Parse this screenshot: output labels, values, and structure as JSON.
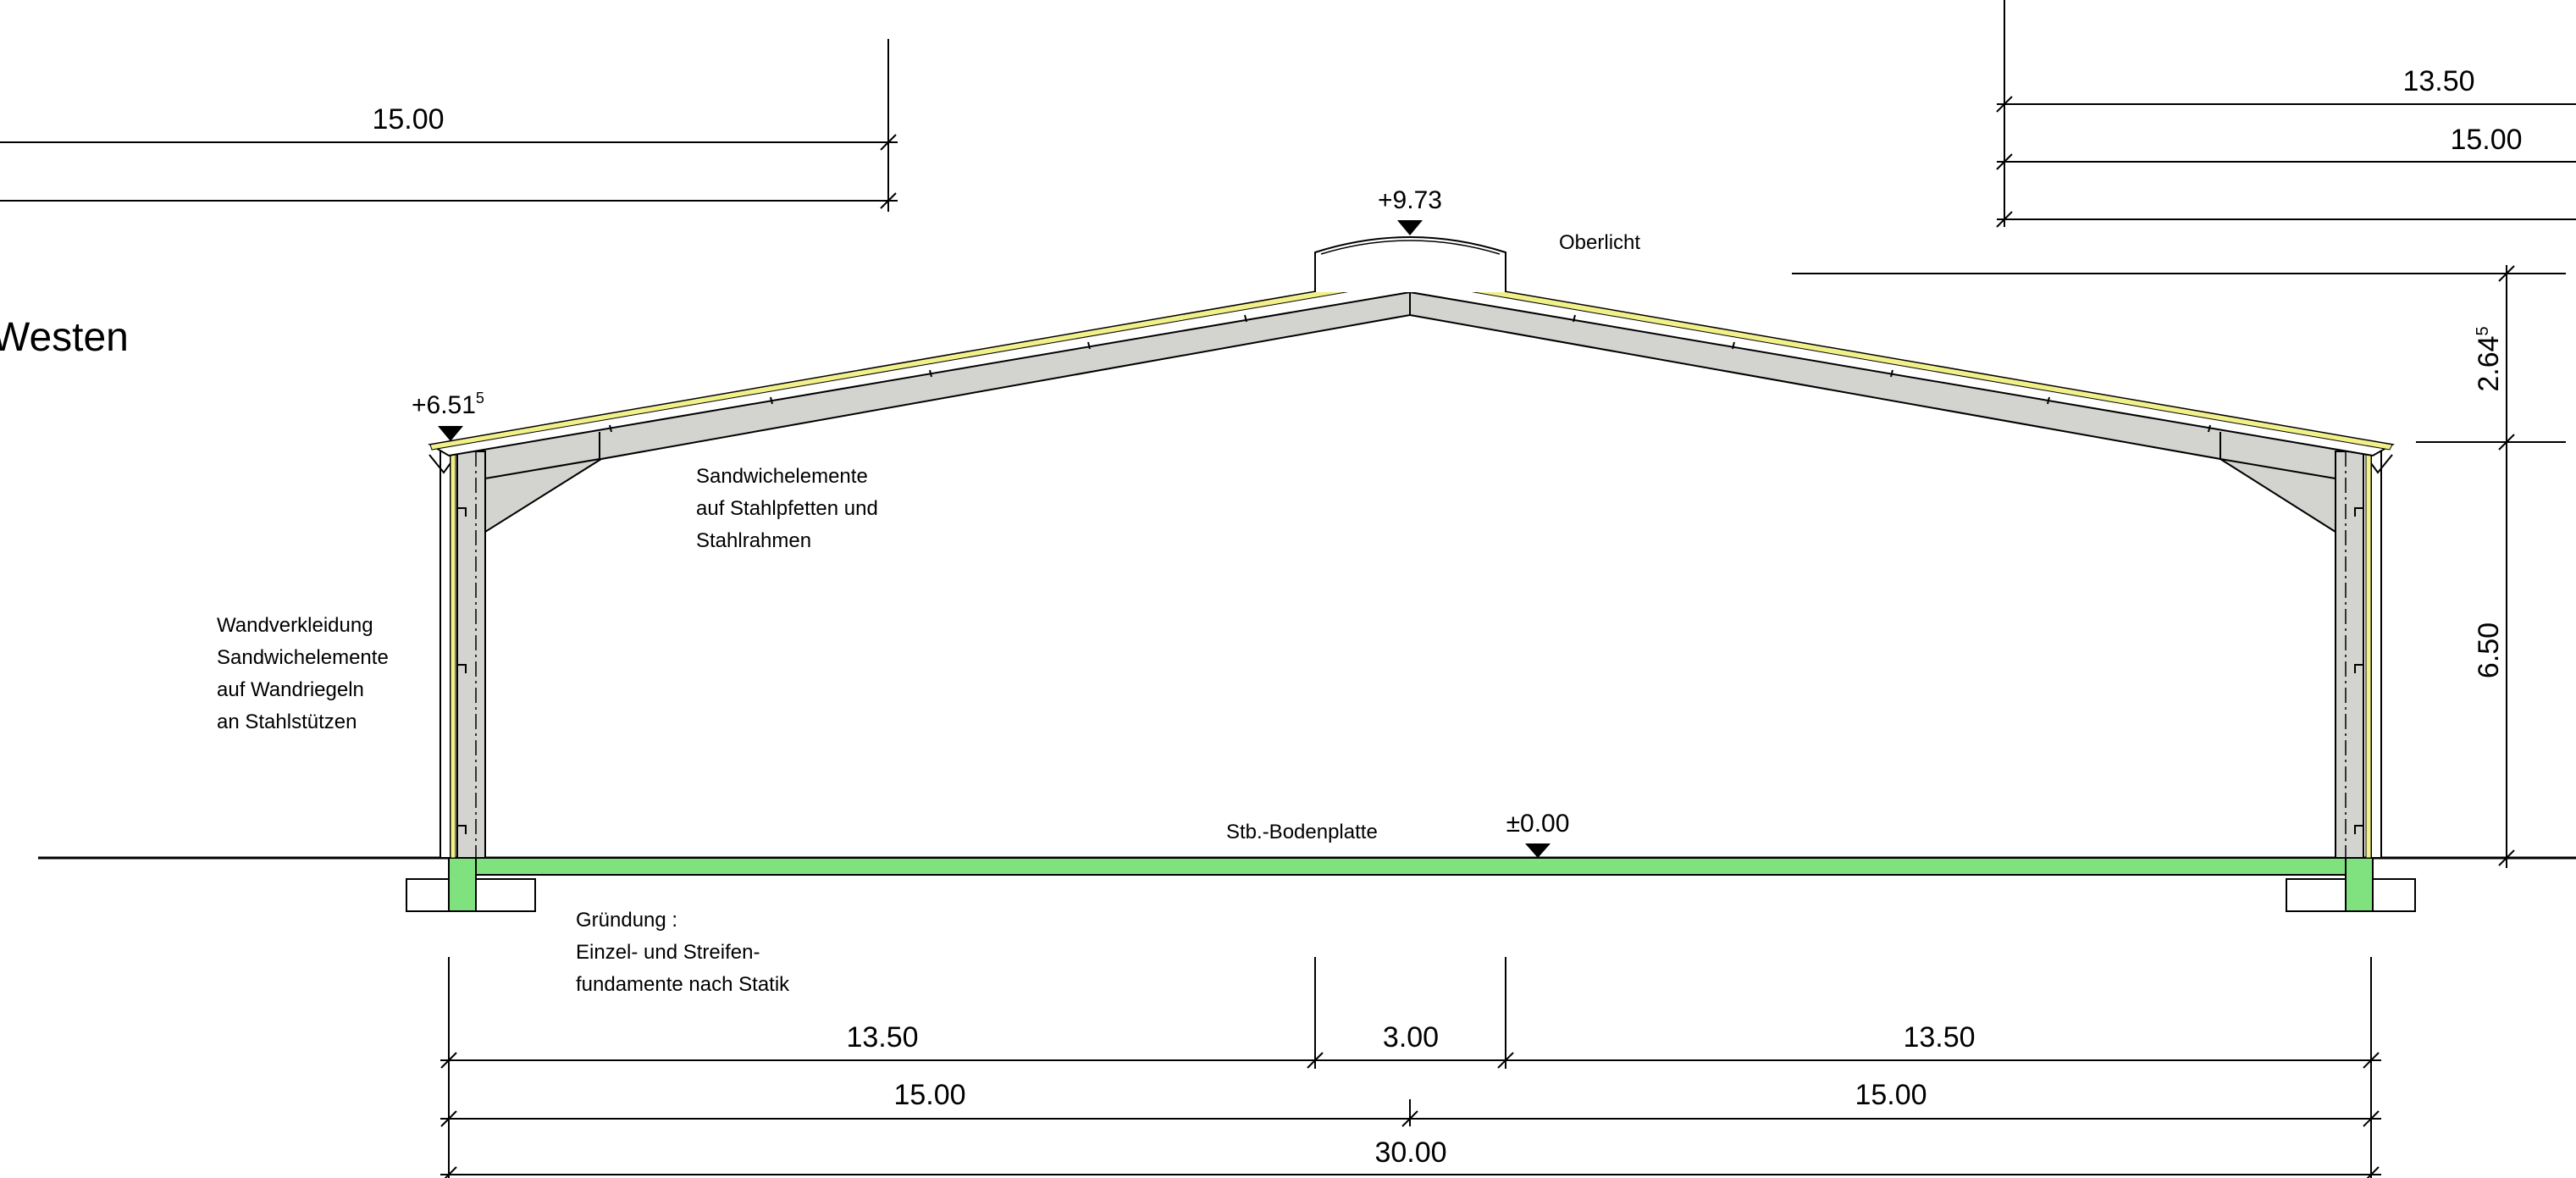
{
  "title": "Westen",
  "levels": {
    "ridge": "+9.73",
    "eave_main": "+6.51",
    "eave_sup": "5",
    "floor": "±0.00"
  },
  "labels": {
    "skylight": "Oberlicht",
    "roof": [
      "Sandwichelemente",
      "auf Stahlpfetten und",
      "Stahlrahmen"
    ],
    "wall": [
      "Wandverkleidung",
      "Sandwichelemente",
      "auf Wandriegeln",
      "an Stahlstützen"
    ],
    "slab": "Stb.-Bodenplatte",
    "foundation": [
      "Gründung :",
      "Einzel- und Streifen-",
      "fundamente nach Statik"
    ]
  },
  "dimensions": {
    "top_left": "15.00",
    "top_right_1": "13.50",
    "top_right_2": "15.00",
    "right_upper_main": "2.64",
    "right_upper_sup": "5",
    "right_lower": "6.50",
    "bottom_row1": [
      "13.50",
      "3.00",
      "13.50"
    ],
    "bottom_row2": [
      "15.00",
      "15.00"
    ],
    "bottom_row3": "30.00"
  },
  "colors": {
    "concrete": "#7fe27f",
    "steel": "#d3d3d0",
    "cladding": "#f2f08a",
    "line": "#000000"
  }
}
